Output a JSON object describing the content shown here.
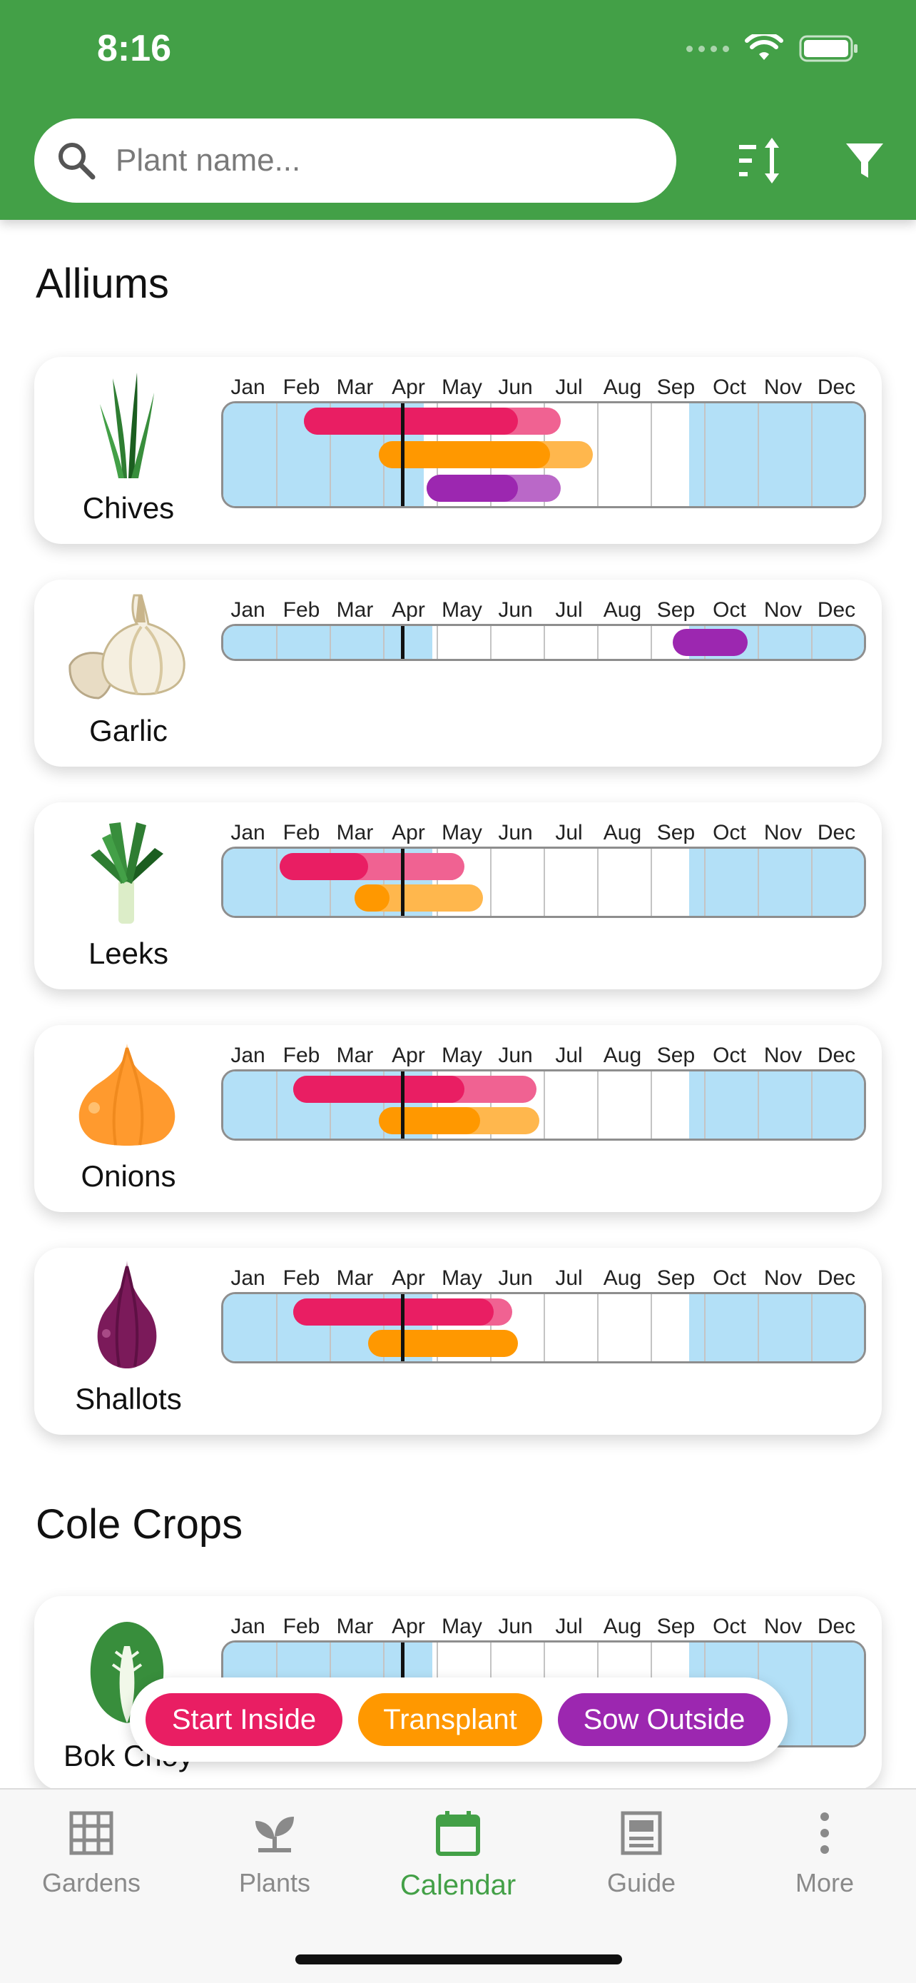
{
  "status": {
    "time": "8:16"
  },
  "search": {
    "placeholder": "Plant name..."
  },
  "months": [
    "Jan",
    "Feb",
    "Mar",
    "Apr",
    "May",
    "Jun",
    "Jul",
    "Aug",
    "Sep",
    "Oct",
    "Nov",
    "Dec"
  ],
  "today_month_fraction": 3.35,
  "colors": {
    "header": "#43a047",
    "start_inside": "#e91e63",
    "start_inside_light": "#f06292",
    "transplant": "#ff9800",
    "transplant_light": "#ffb74d",
    "sow_outside": "#9c27b0",
    "sow_outside_light": "#ba68c8",
    "season": "#b3e0f7"
  },
  "sections": [
    {
      "title": "Alliums",
      "plants": [
        {
          "name": "Chives",
          "icon": "chives-icon",
          "season": [
            [
              0,
              3.75
            ],
            [
              8.7,
              12
            ]
          ],
          "bars": [
            {
              "kind": "start_inside",
              "main": [
                1.5,
                5.5
              ],
              "ext": [
                5.5,
                6.3
              ]
            },
            {
              "kind": "transplant",
              "main": [
                2.9,
                6.1
              ],
              "ext": [
                6.1,
                6.9
              ]
            },
            {
              "kind": "sow_outside",
              "main": [
                3.8,
                5.5
              ],
              "ext": [
                5.5,
                6.3
              ]
            }
          ]
        },
        {
          "name": "Garlic",
          "icon": "garlic-icon",
          "season": [
            [
              0,
              3.9
            ],
            [
              8.7,
              12
            ]
          ],
          "bars": [
            {
              "kind": "sow_outside",
              "main": [
                8.4,
                9.8
              ],
              "ext": null
            }
          ]
        },
        {
          "name": "Leeks",
          "icon": "leeks-icon",
          "season": [
            [
              0,
              3.9
            ],
            [
              8.7,
              12
            ]
          ],
          "bars": [
            {
              "kind": "start_inside",
              "main": [
                1.05,
                2.7
              ],
              "ext": [
                2.7,
                4.5
              ]
            },
            {
              "kind": "transplant",
              "main": [
                2.45,
                3.1
              ],
              "ext": [
                3.1,
                4.85
              ]
            }
          ]
        },
        {
          "name": "Onions",
          "icon": "onion-icon",
          "season": [
            [
              0,
              3.9
            ],
            [
              8.7,
              12
            ]
          ],
          "bars": [
            {
              "kind": "start_inside",
              "main": [
                1.3,
                4.5
              ],
              "ext": [
                4.5,
                5.85
              ]
            },
            {
              "kind": "transplant",
              "main": [
                2.9,
                4.8
              ],
              "ext": [
                4.8,
                5.9
              ]
            }
          ]
        },
        {
          "name": "Shallots",
          "icon": "shallot-icon",
          "season": [
            [
              0,
              3.9
            ],
            [
              8.7,
              12
            ]
          ],
          "bars": [
            {
              "kind": "start_inside",
              "main": [
                1.3,
                5.05
              ],
              "ext": [
                5.05,
                5.4
              ]
            },
            {
              "kind": "transplant",
              "main": [
                2.7,
                5.5
              ],
              "ext": null
            }
          ]
        }
      ]
    },
    {
      "title": "Cole Crops",
      "plants": [
        {
          "name": "Bok Choy",
          "icon": "bok-choy-icon",
          "season": [
            [
              0,
              3.9
            ],
            [
              8.7,
              12
            ]
          ],
          "bars": [
            {
              "kind": "start_inside",
              "main": [
                2.75,
                6.5
              ],
              "ext": [
                6.5,
                7.15
              ]
            }
          ]
        }
      ]
    }
  ],
  "legend": {
    "start_inside": "Start Inside",
    "transplant": "Transplant",
    "sow_outside": "Sow Outside"
  },
  "nav": {
    "gardens": "Gardens",
    "plants": "Plants",
    "calendar": "Calendar",
    "guide": "Guide",
    "more": "More"
  }
}
